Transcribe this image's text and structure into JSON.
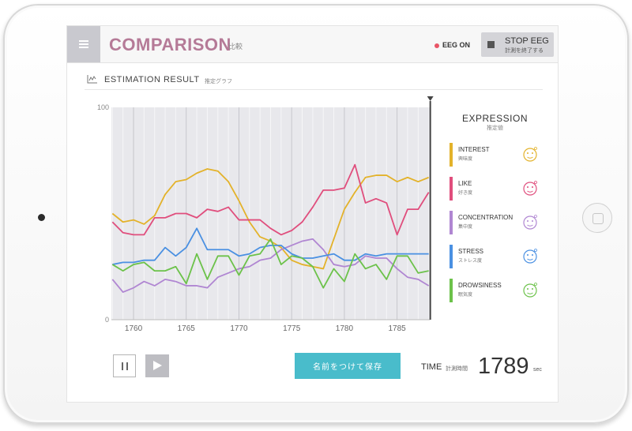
{
  "header": {
    "title": "COMPARISON",
    "title_jp": "比較",
    "eeg_status": "EEG ON",
    "stop_label": "STOP EEG",
    "stop_sub": "計測を終了する"
  },
  "section": {
    "title": "ESTIMATION RESULT",
    "sub": "推定グラフ"
  },
  "chart_data": {
    "type": "line",
    "x": [
      1758,
      1759,
      1760,
      1761,
      1762,
      1763,
      1764,
      1765,
      1766,
      1767,
      1768,
      1769,
      1770,
      1771,
      1772,
      1773,
      1774,
      1775,
      1776,
      1777,
      1778,
      1779,
      1780,
      1781,
      1782,
      1783,
      1784,
      1785,
      1786,
      1787,
      1788
    ],
    "xlim": [
      1757.9,
      1788.1
    ],
    "xticks": [
      1760,
      1765,
      1770,
      1775,
      1780,
      1785
    ],
    "ylim": [
      0,
      100
    ],
    "yticks": [
      0,
      100
    ],
    "colors": {
      "interest": "#e3b22a",
      "like": "#e04e7d",
      "concentration": "#b086d2",
      "stress": "#4a90e2",
      "drowsiness": "#6cc24a"
    },
    "series": [
      {
        "name": "INTEREST",
        "key": "interest",
        "values": [
          50,
          46,
          47,
          45,
          49,
          59,
          65,
          66,
          69,
          71,
          70,
          65,
          56,
          46,
          39,
          37,
          34,
          28,
          26,
          25,
          24,
          38,
          52,
          60,
          67,
          68,
          68,
          65,
          67,
          65,
          67
        ]
      },
      {
        "name": "LIKE",
        "key": "like",
        "values": [
          46,
          41,
          40,
          40,
          48,
          48,
          50,
          50,
          48,
          52,
          51,
          53,
          47,
          47,
          47,
          43,
          40,
          42,
          46,
          53,
          61,
          61,
          62,
          73,
          55,
          57,
          55,
          40,
          52,
          52,
          60
        ]
      },
      {
        "name": "CONCENTRATION",
        "key": "concentration",
        "values": [
          19,
          13,
          15,
          18,
          16,
          19,
          18,
          16,
          16,
          15,
          20,
          22,
          24,
          25,
          28,
          29,
          33,
          35,
          37,
          38,
          33,
          26,
          25,
          26,
          30,
          29,
          29,
          24,
          20,
          19,
          16
        ]
      },
      {
        "name": "STRESS",
        "key": "stress",
        "values": [
          26,
          27,
          27,
          28,
          28,
          34,
          30,
          34,
          43,
          33,
          33,
          33,
          30,
          31,
          34,
          35,
          35,
          31,
          29,
          29,
          30,
          31,
          28,
          28,
          31,
          30,
          31,
          31,
          31,
          31,
          31
        ]
      },
      {
        "name": "DROWSINESS",
        "key": "drowsiness",
        "values": [
          26,
          23,
          26,
          27,
          23,
          23,
          25,
          17,
          31,
          19,
          30,
          30,
          21,
          30,
          31,
          38,
          26,
          30,
          29,
          25,
          15,
          24,
          18,
          31,
          24,
          26,
          19,
          30,
          30,
          22,
          23
        ]
      }
    ]
  },
  "expression": {
    "title": "EXPRESSION",
    "sub": "推定値",
    "items": [
      {
        "label": "INTEREST",
        "jp": "興味度",
        "color": "#e3b22a",
        "icon": "interest-face-icon"
      },
      {
        "label": "LIKE",
        "jp": "好き度",
        "color": "#e04e7d",
        "icon": "like-face-icon"
      },
      {
        "label": "CONCENTRATION",
        "jp": "集中度",
        "color": "#b086d2",
        "icon": "concentration-face-icon"
      },
      {
        "label": "STRESS",
        "jp": "ストレス度",
        "color": "#4a90e2",
        "icon": "stress-face-icon"
      },
      {
        "label": "DROWSINESS",
        "jp": "眠気度",
        "color": "#6cc24a",
        "icon": "drowsiness-face-icon"
      }
    ]
  },
  "controls": {
    "save_label": "名前をつけて保存",
    "time_label": "TIME",
    "time_jp": "計測時間",
    "time_value": "1789",
    "time_unit": "sec"
  }
}
